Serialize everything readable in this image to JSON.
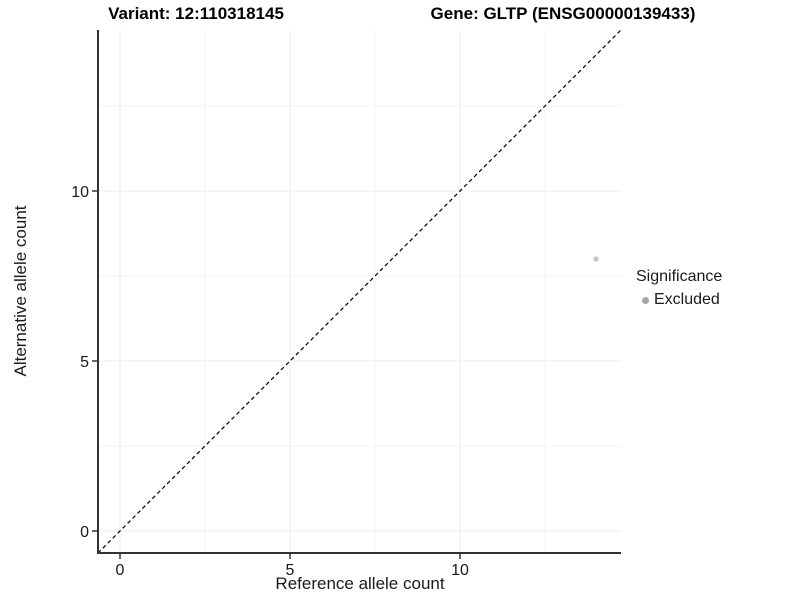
{
  "header": {
    "variant_title": "Variant: 12:110318145",
    "gene_title": "Gene: GLTP (ENSG00000139433)"
  },
  "chart_data": {
    "type": "scatter",
    "title": "Variant: 12:110318145 — Gene: GLTP (ENSG00000139433)",
    "xlabel": "Reference allele count",
    "ylabel": "Alternative allele count",
    "xlim": [
      -0.65,
      14.74
    ],
    "ylim": [
      -0.65,
      14.74
    ],
    "x_ticks": [
      0,
      5,
      10
    ],
    "y_ticks": [
      0,
      5,
      10
    ],
    "x_minor_ticks": [
      2.5,
      7.5,
      12.5
    ],
    "y_minor_ticks": [
      2.5,
      7.5,
      12.5
    ],
    "grid": true,
    "identity_line": {
      "style": "dashed",
      "from": [
        -0.65,
        -0.65
      ],
      "to": [
        14.74,
        14.74
      ],
      "color": "#000000"
    },
    "points": [
      {
        "x": 14,
        "y": 8,
        "significance": "Excluded"
      }
    ],
    "legend": {
      "title": "Significance",
      "position": "right",
      "items": [
        {
          "label": "Excluded",
          "color": "#a6a6a6"
        }
      ]
    },
    "colors": {
      "point": "#c7c7c7",
      "axis_line": "#333333",
      "grid_major": "#ececec",
      "grid_minor": "#f5f5f5",
      "tick_label": "#1a1a1a"
    }
  }
}
